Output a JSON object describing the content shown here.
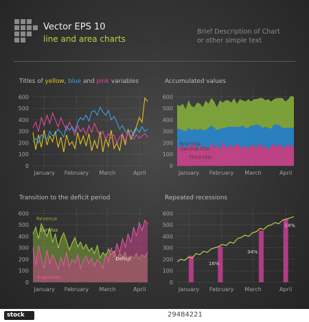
{
  "header": {
    "title": "Vector EPS 10",
    "subtitle": "line and area charts",
    "description_line1": "Brief Description of Chart",
    "description_line2": "or other simple text"
  },
  "colors": {
    "yellow": "#e7c21f",
    "blue": "#3aa2e6",
    "pink": "#e2489a",
    "green": "#7fa63a",
    "pink_area": "#c4428a",
    "blue_area": "#2a84c6"
  },
  "watermark": {
    "id": "29484221"
  },
  "chart_data": [
    {
      "type": "line",
      "title": {
        "prefix": "Titles of ",
        "w1": "yellow",
        "s1": ", ",
        "w2": "blue",
        "s2": " and ",
        "w3": "pink",
        "suffix": " variables"
      },
      "xlabels": [
        "January",
        "February",
        "March",
        "April"
      ],
      "yticks": [
        0,
        100,
        200,
        300,
        400,
        500,
        600
      ],
      "ylim": [
        0,
        650
      ],
      "series": [
        {
          "color": "yellow",
          "values": [
            290,
            140,
            270,
            160,
            310,
            180,
            260,
            210,
            300,
            160,
            250,
            120,
            270,
            180,
            210,
            150,
            290,
            190,
            260,
            170,
            280,
            130,
            220,
            150,
            300,
            120,
            240,
            170,
            310,
            150,
            200,
            130,
            280,
            180,
            320,
            230,
            290,
            340,
            420,
            380,
            590,
            560
          ]
        },
        {
          "color": "blue",
          "values": [
            210,
            240,
            200,
            270,
            250,
            230,
            300,
            260,
            280,
            320,
            290,
            250,
            350,
            310,
            340,
            300,
            380,
            420,
            400,
            440,
            390,
            470,
            480,
            440,
            510,
            470,
            440,
            480,
            400,
            430,
            380,
            320,
            350,
            300,
            270,
            310,
            260,
            330,
            290,
            340,
            300,
            320
          ]
        },
        {
          "color": "pink",
          "values": [
            330,
            380,
            300,
            420,
            350,
            440,
            370,
            460,
            400,
            340,
            420,
            360,
            310,
            380,
            330,
            270,
            350,
            300,
            330,
            270,
            350,
            290,
            370,
            310,
            260,
            300,
            230,
            280,
            240,
            270,
            200,
            250,
            280,
            210,
            300,
            260,
            230,
            270,
            240,
            260,
            280,
            250
          ]
        }
      ]
    },
    {
      "type": "area",
      "title": "Accumulated values",
      "xlabels": [
        "January",
        "February",
        "March",
        "April"
      ],
      "yticks": [
        0,
        100,
        200,
        300,
        400,
        500,
        600
      ],
      "ylim": [
        0,
        650
      ],
      "annotations": [
        "First title",
        "Second title",
        "Third title"
      ],
      "series": [
        {
          "color": "pink_area",
          "values": [
            180,
            150,
            190,
            140,
            200,
            160,
            210,
            130,
            190,
            150,
            170,
            140,
            200,
            160,
            180,
            140,
            210,
            170,
            150,
            190,
            160,
            200,
            170,
            150,
            180,
            140,
            190,
            170,
            160,
            200,
            150,
            180,
            140,
            170,
            190,
            160,
            200,
            150,
            170,
            190,
            160,
            180
          ]
        },
        {
          "color": "blue_area",
          "values": [
            140,
            170,
            120,
            160,
            130,
            150,
            110,
            180,
            130,
            160,
            140,
            190,
            150,
            170,
            130,
            180,
            120,
            160,
            190,
            150,
            180,
            140,
            170,
            200,
            150,
            190,
            160,
            180,
            200,
            150,
            180,
            160,
            190,
            150,
            170,
            200,
            150,
            180,
            160,
            140,
            170,
            150
          ]
        },
        {
          "color": "green",
          "values": [
            210,
            200,
            230,
            190,
            240,
            210,
            190,
            240,
            220,
            200,
            260,
            210,
            240,
            230,
            200,
            250,
            220,
            240,
            230,
            210,
            250,
            200,
            240,
            220,
            230,
            250,
            210,
            230,
            220,
            240,
            260,
            230,
            250,
            240,
            220,
            230,
            240,
            260,
            230,
            250,
            280,
            270
          ]
        }
      ]
    },
    {
      "type": "area",
      "title": "Transition to the deficit period",
      "xlabels": [
        "January",
        "February",
        "March",
        "April"
      ],
      "yticks": [
        0,
        100,
        200,
        300,
        400,
        500,
        600
      ],
      "ylim": [
        0,
        650
      ],
      "annotations": [
        "Revenue",
        "Surplus",
        "Deficit",
        "Expenses"
      ],
      "series": [
        {
          "name": "Revenue",
          "color": "green",
          "values": [
            420,
            480,
            380,
            510,
            450,
            400,
            470,
            350,
            420,
            300,
            380,
            430,
            360,
            280,
            340,
            390,
            310,
            350,
            290,
            330,
            270,
            300,
            250,
            320,
            210,
            260,
            230,
            290,
            240,
            270,
            200,
            250,
            220,
            260,
            180,
            230,
            210,
            250,
            200,
            240,
            220,
            260
          ]
        },
        {
          "name": "Expenses",
          "color": "pink_area",
          "values": [
            300,
            150,
            320,
            210,
            120,
            280,
            160,
            240,
            190,
            110,
            220,
            150,
            260,
            130,
            200,
            170,
            240,
            120,
            190,
            230,
            160,
            210,
            140,
            200,
            170,
            120,
            250,
            180,
            300,
            220,
            340,
            260,
            380,
            310,
            420,
            350,
            480,
            400,
            520,
            450,
            540,
            510
          ]
        }
      ]
    },
    {
      "type": "bar",
      "title": "Repeated recessions",
      "xlabels": [
        "January",
        "February",
        "March",
        "April"
      ],
      "yticks": [
        0,
        100,
        200,
        300,
        400,
        500,
        600
      ],
      "ylim": [
        0,
        650
      ],
      "line": [
        180,
        200,
        190,
        220,
        210,
        250,
        240,
        270,
        260,
        290,
        300,
        310,
        330,
        320,
        350,
        340,
        380,
        390,
        410,
        400,
        430,
        440,
        470,
        460,
        490,
        500,
        520,
        510,
        540,
        550,
        560,
        570
      ],
      "bars": [
        {
          "x": 0.12,
          "value": 230
        },
        {
          "x": 0.37,
          "value": 310
        },
        {
          "x": 0.72,
          "value": 450
        },
        {
          "x": 0.93,
          "value": 550
        }
      ],
      "annotations": [
        "16%",
        "34%",
        "14%"
      ]
    }
  ]
}
